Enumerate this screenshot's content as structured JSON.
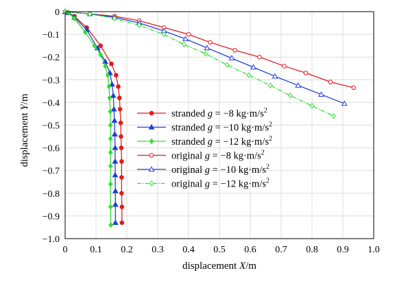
{
  "chart_data": {
    "type": "line",
    "xlabel": "displacement X/m",
    "ylabel": "displacement Y/m",
    "xlim": [
      0,
      1.0
    ],
    "ylim": [
      -1.0,
      0
    ],
    "x_ticks": [
      "0",
      "0.1",
      "0.2",
      "0.3",
      "0.4",
      "0.5",
      "0.6",
      "0.7",
      "0.8",
      "0.9",
      "1.0"
    ],
    "y_ticks": [
      "0",
      "-0.1",
      "-0.2",
      "-0.3",
      "-0.4",
      "-0.5",
      "-0.6",
      "-0.7",
      "-0.8",
      "-0.9",
      "-1.0"
    ],
    "grid": true,
    "legend_position": "center-right",
    "series": [
      {
        "name": "stranded g = -8 kg·m/s²",
        "legend_prefix": "stranded",
        "legend_value": "−8",
        "color": "#e31a1c",
        "marker": "filled-circle",
        "dashed": false,
        "x": [
          0,
          0.01,
          0.03,
          0.07,
          0.115,
          0.15,
          0.165,
          0.172,
          0.176,
          0.178,
          0.18,
          0.181,
          0.182,
          0.183,
          0.183,
          0.183,
          0.184,
          0.184
        ],
        "y": [
          0,
          -0.005,
          -0.02,
          -0.07,
          -0.15,
          -0.23,
          -0.28,
          -0.33,
          -0.38,
          -0.43,
          -0.49,
          -0.55,
          -0.6,
          -0.66,
          -0.73,
          -0.8,
          -0.86,
          -0.93
        ]
      },
      {
        "name": "stranded g = -10 kg·m/s²",
        "legend_prefix": "stranded",
        "legend_value": "−10",
        "color": "#1f3fd6",
        "marker": "filled-triangle",
        "dashed": false,
        "x": [
          0,
          0.01,
          0.03,
          0.07,
          0.105,
          0.13,
          0.145,
          0.152,
          0.156,
          0.158,
          0.16,
          0.161,
          0.162,
          0.162,
          0.162,
          0.163,
          0.163,
          0.163
        ],
        "y": [
          0,
          -0.005,
          -0.025,
          -0.08,
          -0.16,
          -0.22,
          -0.27,
          -0.32,
          -0.37,
          -0.43,
          -0.48,
          -0.54,
          -0.6,
          -0.66,
          -0.72,
          -0.79,
          -0.85,
          -0.93
        ]
      },
      {
        "name": "stranded g = -12 kg·m/s²",
        "legend_prefix": "stranded",
        "legend_value": "−12",
        "color": "#33dd33",
        "marker": "filled-diamond",
        "dashed": false,
        "x": [
          0,
          0.01,
          0.03,
          0.065,
          0.095,
          0.115,
          0.13,
          0.138,
          0.142,
          0.144,
          0.146,
          0.147,
          0.147,
          0.147,
          0.147,
          0.147,
          0.147,
          0.148
        ],
        "y": [
          0,
          -0.005,
          -0.03,
          -0.09,
          -0.15,
          -0.19,
          -0.24,
          -0.28,
          -0.33,
          -0.38,
          -0.44,
          -0.5,
          -0.56,
          -0.62,
          -0.68,
          -0.76,
          -0.86,
          -0.94
        ]
      },
      {
        "name": "original g = -8 kg·m/s²",
        "legend_prefix": "original",
        "legend_value": "−8",
        "color": "#e31a1c",
        "marker": "open-circle",
        "dashed": false,
        "x": [
          0,
          0.08,
          0.16,
          0.24,
          0.32,
          0.4,
          0.47,
          0.55,
          0.63,
          0.71,
          0.78,
          0.86,
          0.935
        ],
        "y": [
          0,
          -0.01,
          -0.02,
          -0.04,
          -0.07,
          -0.1,
          -0.135,
          -0.17,
          -0.2,
          -0.24,
          -0.27,
          -0.31,
          -0.335
        ]
      },
      {
        "name": "original g = -10 kg·m/s²",
        "legend_prefix": "original",
        "legend_value": "−10",
        "color": "#1f3fd6",
        "marker": "open-triangle",
        "dashed": false,
        "x": [
          0,
          0.08,
          0.16,
          0.24,
          0.32,
          0.39,
          0.46,
          0.54,
          0.61,
          0.68,
          0.755,
          0.83,
          0.905
        ],
        "y": [
          0,
          -0.01,
          -0.025,
          -0.05,
          -0.085,
          -0.12,
          -0.16,
          -0.205,
          -0.245,
          -0.285,
          -0.325,
          -0.365,
          -0.405
        ]
      },
      {
        "name": "original g = -12 kg·m/s²",
        "legend_prefix": "original",
        "legend_value": "−12",
        "color": "#33dd33",
        "marker": "open-diamond",
        "dashed": true,
        "x": [
          0,
          0.08,
          0.16,
          0.24,
          0.32,
          0.385,
          0.455,
          0.525,
          0.595,
          0.665,
          0.73,
          0.8,
          0.87
        ],
        "y": [
          0,
          -0.01,
          -0.03,
          -0.06,
          -0.1,
          -0.145,
          -0.185,
          -0.235,
          -0.28,
          -0.325,
          -0.37,
          -0.415,
          -0.46
        ]
      }
    ]
  }
}
